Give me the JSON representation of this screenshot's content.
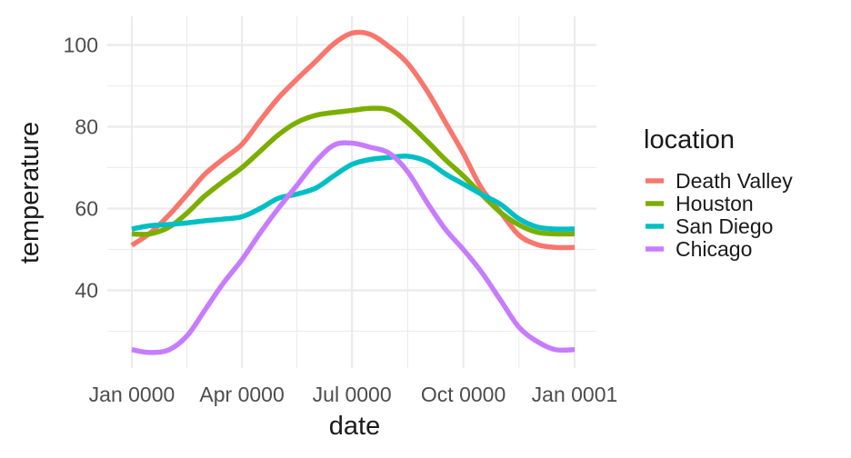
{
  "chart_data": {
    "type": "line",
    "xlabel": "date",
    "ylabel": "temperature",
    "x_ticks": [
      "Jan 0000",
      "Apr 0000",
      "Jul 0000",
      "Oct 0000",
      "Jan 0001"
    ],
    "y_ticks": [
      40,
      60,
      80,
      100
    ],
    "xlim": [
      "0000-01-01",
      "0001-01-01"
    ],
    "ylim": [
      21,
      107
    ],
    "grid": true,
    "legend": {
      "title": "location",
      "position": "right"
    },
    "x": [
      "0000-01-01",
      "0000-01-16",
      "0000-02-01",
      "0000-02-16",
      "0000-03-01",
      "0000-03-16",
      "0000-04-01",
      "0000-04-16",
      "0000-05-01",
      "0000-05-16",
      "0000-06-01",
      "0000-06-16",
      "0000-07-01",
      "0000-07-16",
      "0000-08-01",
      "0000-08-16",
      "0000-09-01",
      "0000-09-16",
      "0000-10-01",
      "0000-10-16",
      "0000-11-01",
      "0000-11-16",
      "0000-12-01",
      "0000-12-16",
      "0001-01-01"
    ],
    "series": [
      {
        "name": "Death Valley",
        "color": "#F8766D",
        "values": [
          51.0,
          54.0,
          58.5,
          63.5,
          68.3,
          72.0,
          75.7,
          81.5,
          87.0,
          91.5,
          96.0,
          100.3,
          102.9,
          102.6,
          99.5,
          95.5,
          88.8,
          81.2,
          73.5,
          65.0,
          59.0,
          53.5,
          51.2,
          50.5,
          50.5
        ]
      },
      {
        "name": "Houston",
        "color": "#7CAE00",
        "values": [
          53.8,
          53.8,
          55.5,
          59.0,
          63.0,
          66.5,
          70.0,
          74.0,
          78.0,
          81.0,
          82.8,
          83.5,
          84.0,
          84.5,
          84.1,
          81.0,
          76.5,
          72.0,
          68.0,
          63.5,
          59.0,
          56.0,
          54.2,
          53.8,
          53.8
        ]
      },
      {
        "name": "San Diego",
        "color": "#00BFC4",
        "values": [
          55.0,
          55.8,
          56.1,
          56.5,
          57.0,
          57.4,
          58.0,
          60.0,
          62.5,
          63.5,
          65.0,
          68.0,
          70.8,
          72.0,
          72.5,
          72.8,
          71.5,
          68.5,
          66.0,
          63.5,
          61.0,
          57.5,
          55.5,
          55.0,
          55.0
        ]
      },
      {
        "name": "Chicago",
        "color": "#C77CFF",
        "values": [
          25.5,
          24.8,
          25.5,
          29.0,
          35.0,
          41.5,
          47.5,
          54.0,
          60.0,
          65.5,
          71.5,
          75.5,
          76.0,
          75.0,
          73.5,
          69.0,
          61.5,
          55.0,
          50.0,
          44.5,
          37.5,
          31.0,
          27.5,
          25.5,
          25.5
        ]
      }
    ]
  }
}
